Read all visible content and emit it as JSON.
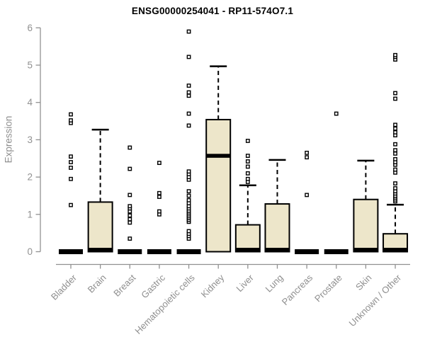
{
  "chart_data": {
    "type": "boxplot",
    "title": "ENSG00000254041 - RP11-574O7.1",
    "ylabel": "Expression",
    "xlabel": "",
    "ylim": [
      0,
      6
    ],
    "yticks": [
      0,
      1,
      2,
      3,
      4,
      5,
      6
    ],
    "grid": false,
    "legend": "none",
    "categories": [
      "Bladder",
      "Brain",
      "Breast",
      "Gastric",
      "Hematopoietic cells",
      "Kidney",
      "Liver",
      "Lung",
      "Pancreas",
      "Prostate",
      "Skin",
      "Unknown / Other"
    ],
    "boxes": [
      {
        "category": "Bladder",
        "q1": 0,
        "median": 0,
        "q3": 0,
        "whisker_low": 0,
        "whisker_high": 0,
        "outliers": [
          1.25,
          1.95,
          2.25,
          2.4,
          2.55,
          3.45,
          3.52,
          3.68
        ]
      },
      {
        "category": "Brain",
        "q1": 0,
        "median": 0,
        "q3": 1.33,
        "whisker_low": 0,
        "whisker_high": 3.27,
        "outliers": []
      },
      {
        "category": "Breast",
        "q1": 0,
        "median": 0,
        "q3": 0,
        "whisker_low": 0,
        "whisker_high": 0,
        "outliers": [
          0.35,
          0.78,
          0.87,
          0.97,
          1.08,
          1.16,
          1.22,
          1.52,
          2.22,
          2.79
        ]
      },
      {
        "category": "Gastric",
        "q1": 0,
        "median": 0,
        "q3": 0,
        "whisker_low": 0,
        "whisker_high": 0,
        "outliers": [
          1.0,
          1.08,
          1.47,
          1.57,
          2.38
        ]
      },
      {
        "category": "Hematopoietic cells",
        "q1": 0,
        "median": 0,
        "q3": 0,
        "whisker_low": 0,
        "whisker_high": 0,
        "outliers": [
          0.35,
          0.42,
          0.48,
          0.55,
          0.8,
          0.85,
          0.9,
          0.95,
          1.0,
          1.05,
          1.1,
          1.16,
          1.22,
          1.3,
          1.38,
          1.5,
          1.62,
          1.93,
          2.0,
          2.08,
          2.15,
          3.38,
          3.7,
          4.18,
          4.27,
          4.45,
          5.22,
          5.9
        ]
      },
      {
        "category": "Kidney",
        "q1": 0,
        "median": 2.57,
        "q3": 3.54,
        "whisker_low": 0,
        "whisker_high": 4.97,
        "outliers": []
      },
      {
        "category": "Liver",
        "q1": 0,
        "median": 0,
        "q3": 0.72,
        "whisker_low": 0,
        "whisker_high": 1.78,
        "outliers": [
          1.87,
          1.95,
          2.1,
          2.28,
          2.42,
          2.57,
          2.97
        ]
      },
      {
        "category": "Lung",
        "q1": 0,
        "median": 0,
        "q3": 1.28,
        "whisker_low": 0,
        "whisker_high": 2.46,
        "outliers": []
      },
      {
        "category": "Pancreas",
        "q1": 0,
        "median": 0,
        "q3": 0,
        "whisker_low": 0,
        "whisker_high": 0,
        "outliers": [
          1.52,
          2.53,
          2.65
        ]
      },
      {
        "category": "Prostate",
        "q1": 0,
        "median": 0,
        "q3": 0,
        "whisker_low": 0,
        "whisker_high": 0,
        "outliers": [
          3.7
        ]
      },
      {
        "category": "Skin",
        "q1": 0,
        "median": 0,
        "q3": 1.4,
        "whisker_low": 0,
        "whisker_high": 2.44,
        "outliers": []
      },
      {
        "category": "Unknown / Other",
        "q1": 0,
        "median": 0,
        "q3": 0.48,
        "whisker_low": 0,
        "whisker_high": 1.26,
        "outliers": [
          1.35,
          1.4,
          1.45,
          1.5,
          1.56,
          1.62,
          1.7,
          1.83,
          2.12,
          2.2,
          2.33,
          2.4,
          2.48,
          2.63,
          2.72,
          2.88,
          3.12,
          3.2,
          3.3,
          3.4,
          4.1,
          4.25,
          5.15,
          5.22,
          5.27
        ]
      }
    ],
    "style": {
      "box_fill": "#EDE6CA",
      "box_stroke": "#000000",
      "median_color": "#000000",
      "whisker_color": "#000000",
      "outlier_fill": "#FFFFFF",
      "outlier_stroke": "#000000",
      "axis_color": "#919191",
      "label_color": "#8F8F8F",
      "title_color": "#000000",
      "background": "#FFFFFF"
    }
  }
}
